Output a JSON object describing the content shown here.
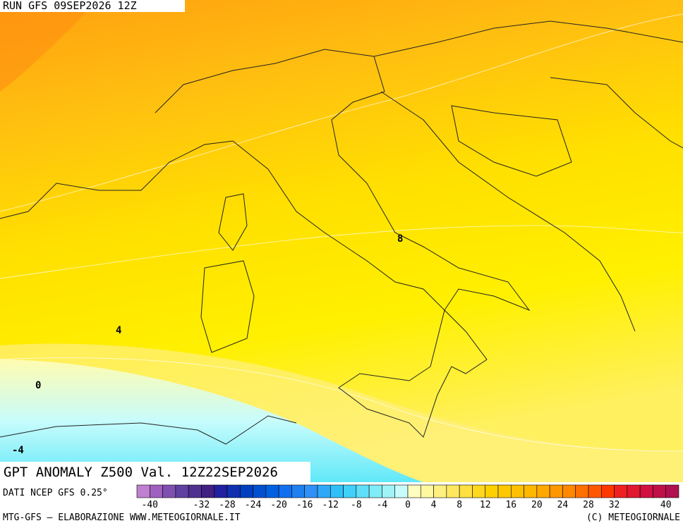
{
  "header": {
    "run": "RUN GFS 09SEP2026 12Z"
  },
  "map": {
    "contour_labels": [
      "8",
      "4",
      "0",
      "-4"
    ]
  },
  "title": "GPT ANOMALY Z500 Val. 12Z22SEP2026",
  "source": "DATI NCEP GFS 0.25°",
  "colorbar": {
    "colors": [
      "#c080d0",
      "#a060c0",
      "#8050b0",
      "#6040a0",
      "#503090",
      "#402080",
      "#2020a0",
      "#1030b0",
      "#0040c0",
      "#0050d0",
      "#0060e0",
      "#1070f0",
      "#2080f0",
      "#3090f8",
      "#30a8f8",
      "#30c0f8",
      "#40d0f8",
      "#60e0f8",
      "#80ecf8",
      "#a0f4f8",
      "#c8fcfc",
      "#fffcc0",
      "#fff8a0",
      "#fff080",
      "#ffe860",
      "#ffe040",
      "#ffd820",
      "#ffd000",
      "#ffc800",
      "#ffc000",
      "#ffb800",
      "#ffa800",
      "#ff9800",
      "#ff8800",
      "#ff7000",
      "#ff5800",
      "#ff3800",
      "#f02020",
      "#e01830",
      "#d01040",
      "#c01048",
      "#b01050"
    ],
    "labels": [
      -40,
      -32,
      -28,
      -24,
      -20,
      -16,
      -12,
      -8,
      -4,
      0,
      4,
      8,
      12,
      16,
      20,
      24,
      28,
      32,
      40
    ]
  },
  "footer": {
    "left": "MTG-GFS — ELABORAZIONE WWW.METEOGIORNALE.IT",
    "right": "(C) METEOGIORNALE"
  }
}
